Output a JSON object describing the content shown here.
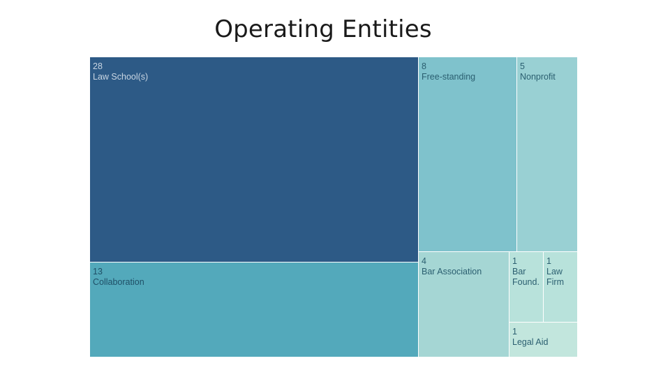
{
  "slide": {
    "title": "Operating Entities"
  },
  "chart_data": {
    "type": "treemap",
    "title": "Operating Entities",
    "items": [
      {
        "name": "Law School(s)",
        "value": 28,
        "color": "#2d5a86",
        "text_color": "#c9d6e3"
      },
      {
        "name": "Collaboration",
        "value": 13,
        "color": "#53a9bb",
        "text_color": "#1f4f66"
      },
      {
        "name": "Free-standing",
        "value": 8,
        "color": "#7fc2cc",
        "text_color": "#2b5f70"
      },
      {
        "name": "Nonprofit",
        "value": 5,
        "color": "#99d0d3",
        "text_color": "#2b5f70"
      },
      {
        "name": "Bar Association",
        "value": 4,
        "color": "#a5d6d4",
        "text_color": "#2b5f70"
      },
      {
        "name": "Bar Found.",
        "value": 1,
        "color": "#b8e2db",
        "text_color": "#2b5f70"
      },
      {
        "name": "Law Firm",
        "value": 1,
        "color": "#b8e2db",
        "text_color": "#2b5f70"
      },
      {
        "name": "Legal Aid",
        "value": 1,
        "color": "#c2e6dd",
        "text_color": "#2b5f70"
      }
    ]
  }
}
